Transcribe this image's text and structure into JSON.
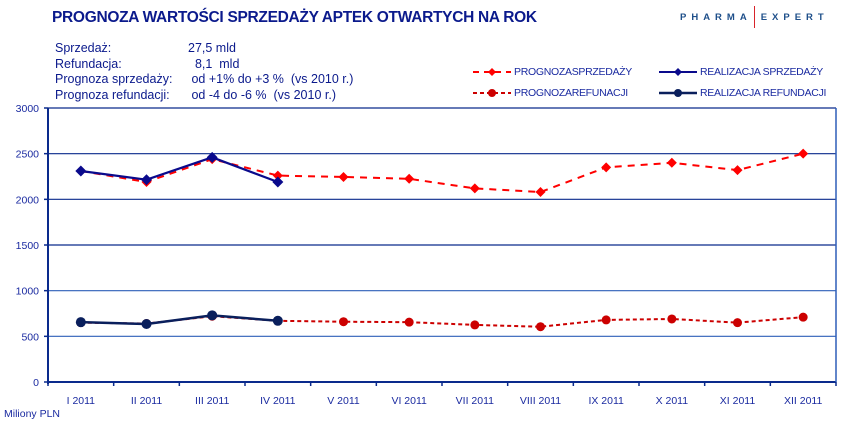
{
  "header": {
    "title": "PROGNOZA WARTOŚCI SPRZEDAŻY APTEK OTWARTYCH NA ROK",
    "logo_left": "PHARMA",
    "logo_right": "EXPERT"
  },
  "info": [
    {
      "label": "Sprzedaż:",
      "value": "27,5 mld"
    },
    {
      "label": "Refundacja:",
      "value": "  8,1  mld"
    },
    {
      "label": "Prognoza sprzedaży:",
      "value": " od +1% do +3 %  (vs 2010 r.)"
    },
    {
      "label": "Prognoza refundacji:",
      "value": " od -4 do -6 %  (vs 2010 r.)"
    }
  ],
  "unit_label": "Miliony PLN",
  "colors": {
    "forecast_sales": "#ff0000",
    "forecast_refund": "#cc0000",
    "actual_sales": "#0a0a8c",
    "actual_refund": "#0a1f5c",
    "axis": "#0a2a8c",
    "grid": "#0a2a8c"
  },
  "chart_data": {
    "type": "line",
    "title": "PROGNOZA WARTOŚCI SPRZEDAŻY APTEK OTWARTYCH NA ROK",
    "xlabel": "",
    "ylabel": "Miliony PLN",
    "ylim": [
      0,
      3000
    ],
    "yticks": [
      "0",
      "500",
      "1000",
      "1500",
      "2000",
      "2500",
      "3000"
    ],
    "grid": true,
    "legend_position": "top-right",
    "categories": [
      "I 2011",
      "II 2011",
      "III 2011",
      "IV 2011",
      "V 2011",
      "VI 2011",
      "VII 2011",
      "VIII 2011",
      "IX 2011",
      "X 2011",
      "XI 2011",
      "XII 2011"
    ],
    "series": [
      {
        "name": "PROGNOZASPRZEDAŻY",
        "style": "dashed",
        "marker": "diamond",
        "values": [
          2310,
          2190,
          2440,
          2260,
          2245,
          2225,
          2120,
          2080,
          2350,
          2400,
          2320,
          2500
        ]
      },
      {
        "name": "REALIZACJA SPRZEDAŻY",
        "style": "solid",
        "marker": "diamond",
        "values": [
          2310,
          2215,
          2460,
          2190,
          null,
          null,
          null,
          null,
          null,
          null,
          null,
          null
        ]
      },
      {
        "name": "PROGNOZAREFUNACJI",
        "style": "dashed",
        "marker": "circle",
        "values": [
          650,
          640,
          720,
          670,
          660,
          655,
          625,
          605,
          680,
          690,
          650,
          710
        ]
      },
      {
        "name": "REALIZACJA REFUNDACJI",
        "style": "solid",
        "marker": "circle",
        "values": [
          655,
          635,
          730,
          670,
          null,
          null,
          null,
          null,
          null,
          null,
          null,
          null
        ]
      }
    ]
  }
}
